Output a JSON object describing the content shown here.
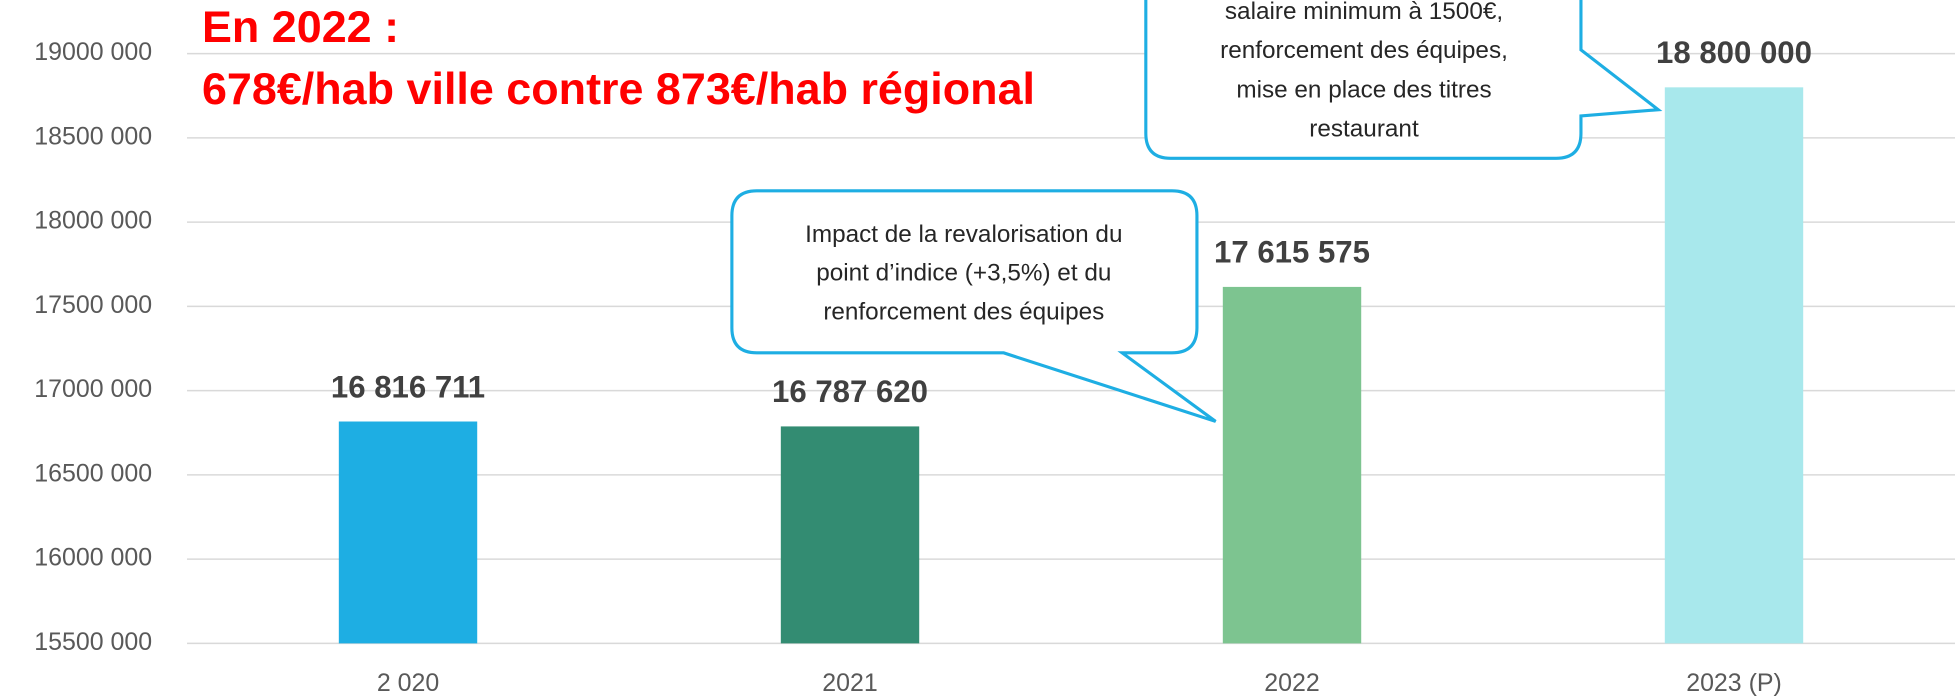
{
  "chart_data": {
    "type": "bar",
    "title_lines": [
      "En 2022 :",
      "678€/hab ville contre 873€/hab régional"
    ],
    "categories": [
      "2 020",
      "2021",
      "2022",
      "2023 (P)"
    ],
    "values": [
      16816711,
      16787620,
      17615575,
      18800000
    ],
    "value_labels": [
      "16 816 711",
      "16 787 620",
      "17 615 575",
      "18 800 000"
    ],
    "colors": [
      "#1eaee3",
      "#338c72",
      "#7dc490",
      "#a8e8ec"
    ],
    "ylim": [
      15500000,
      19000000
    ],
    "yticks": [
      {
        "value": 15500000,
        "label": "15500 000"
      },
      {
        "value": 16000000,
        "label": "16000 000"
      },
      {
        "value": 16500000,
        "label": "16500 000"
      },
      {
        "value": 17000000,
        "label": "17000 000"
      },
      {
        "value": 17500000,
        "label": "17500 000"
      },
      {
        "value": 18000000,
        "label": "18000 000"
      },
      {
        "value": 18500000,
        "label": "18500 000"
      },
      {
        "value": 19000000,
        "label": "19000 000"
      }
    ],
    "grid": true,
    "annotations": [
      {
        "lines": [
          "Impact de la revalorisation du",
          "point d’indice (+3,5%) et du",
          "renforcement des équipes"
        ]
      },
      {
        "lines": [
          "salaire minimum à 1500€,",
          "renforcement des équipes,",
          "mise en place des titres",
          "restaurant"
        ]
      }
    ]
  }
}
